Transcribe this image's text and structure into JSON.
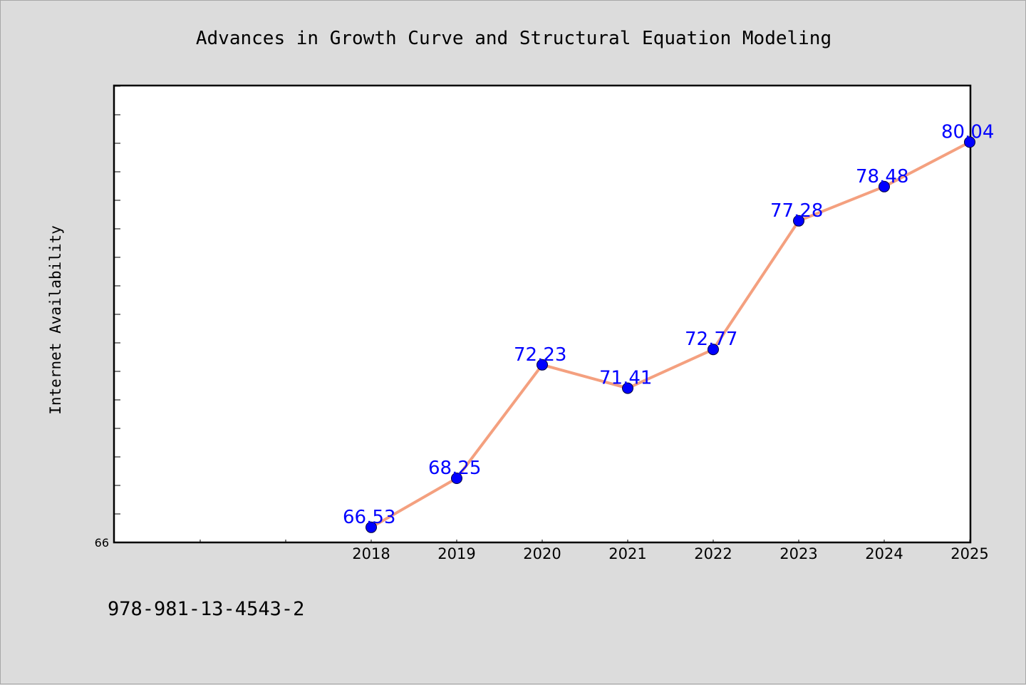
{
  "chart_data": {
    "type": "line",
    "title": "Advances in Growth Curve and Structural Equation Modeling",
    "xlabel": "",
    "ylabel": "Internet Availability",
    "categories": [
      "2018",
      "2019",
      "2020",
      "2021",
      "2022",
      "2023",
      "2024",
      "2025"
    ],
    "values": [
      66.53,
      68.25,
      72.23,
      71.41,
      72.77,
      77.28,
      78.48,
      80.04
    ],
    "data_labels": [
      "66.53",
      "68.25",
      "72.23",
      "71.41",
      "72.77",
      "77.28",
      "78.48",
      "80.04"
    ],
    "y_tick_labels": [
      "66"
    ],
    "ylim": [
      66,
      82
    ],
    "grid": false,
    "legend": "none",
    "line_color": "#f4a07f",
    "marker_color": "#0000ff",
    "label_color": "#0000ff"
  },
  "footer": {
    "isbn": "978-981-13-4543-2"
  }
}
